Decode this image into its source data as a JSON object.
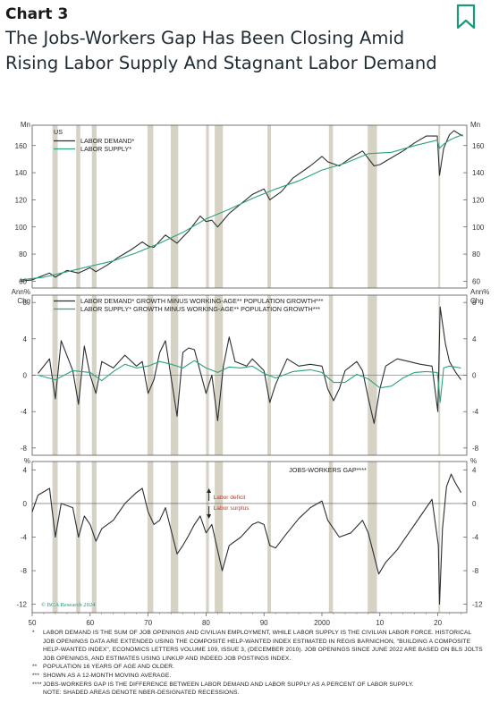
{
  "header": {
    "kicker": "Chart 3",
    "title": "The Jobs-Workers Gap Has Been Closing Amid Rising Labor Supply And Stagnant Labor Demand",
    "bookmark_icon": "bookmark-icon"
  },
  "colors": {
    "demand": "#2b2f33",
    "supply": "#2aa37e",
    "recession": "#d6d3c4",
    "accent": "#1a9a7a",
    "annotation": "#c0392b"
  },
  "chart_data": {
    "type": "line",
    "x_range": [
      1950,
      2025
    ],
    "x_ticks": [
      "50",
      "60",
      "70",
      "80",
      "90",
      "2000",
      "10",
      "20"
    ],
    "x_tick_values": [
      1950,
      1960,
      1970,
      1980,
      1990,
      2000,
      2010,
      2020
    ],
    "recessions": [
      [
        1953.5,
        1954.4
      ],
      [
        1957.6,
        1958.3
      ],
      [
        1960.3,
        1961.1
      ],
      [
        1969.9,
        1970.9
      ],
      [
        1973.9,
        1975.2
      ],
      [
        1980.0,
        1980.5
      ],
      [
        1981.5,
        1982.9
      ],
      [
        1990.6,
        1991.2
      ],
      [
        2001.2,
        2001.9
      ],
      [
        2007.9,
        2009.5
      ],
      [
        2020.1,
        2020.4
      ]
    ],
    "grid": false,
    "watermark": "© BCA Research 2024",
    "panels": [
      {
        "region": "US",
        "unit_left": "Mn",
        "unit_right": "Mn",
        "ylim": [
          55,
          175
        ],
        "y_ticks": [
          60,
          80,
          100,
          120,
          140,
          160
        ],
        "legend": "top-left",
        "series": [
          {
            "name": "LABOR DEMAND*",
            "color": "demand",
            "x": [
              1948,
              1950,
              1953,
              1954,
              1956,
              1958,
              1960,
              1961,
              1963,
              1965,
              1967,
              1969,
              1970,
              1971,
              1973,
              1975,
              1977,
              1979,
              1980,
              1981,
              1982,
              1984,
              1986,
              1988,
              1990,
              1991,
              1993,
              1995,
              1998,
              2000,
              2001,
              2003,
              2005,
              2007,
              2009,
              2010,
              2012,
              2014,
              2016,
              2018,
              2019.9,
              2020.3,
              2021,
              2022,
              2022.8,
              2023.5,
              2024.3
            ],
            "y": [
              60,
              61,
              66,
              63,
              68,
              66,
              70,
              67,
              72,
              78,
              83,
              89,
              86,
              85,
              94,
              88,
              97,
              108,
              104,
              105,
              100,
              110,
              117,
              124,
              128,
              120,
              126,
              136,
              145,
              152,
              148,
              145,
              151,
              156,
              145,
              146,
              151,
              156,
              162,
              167,
              167,
              138,
              158,
              168,
              171,
              169,
              167
            ]
          },
          {
            "name": "LABOR SUPPLY*",
            "color": "supply",
            "x": [
              1948,
              1952,
              1956,
              1960,
              1964,
              1968,
              1972,
              1976,
              1980,
              1984,
              1988,
              1992,
              1996,
              2000,
              2004,
              2008,
              2012,
              2016,
              2019.9,
              2020.3,
              2021,
              2022,
              2023,
              2024.3
            ],
            "y": [
              61,
              63,
              67,
              71,
              75,
              81,
              88,
              96,
              106,
              113,
              121,
              128,
              134,
              142,
              147,
              154,
              155,
              160,
              164,
              158,
              161,
              164,
              166,
              168
            ]
          }
        ]
      },
      {
        "unit_left": "Ann% Chg",
        "unit_right": "Ann% Chg",
        "ylim": [
          -8.8,
          8.8
        ],
        "y_ticks": [
          -8,
          -4,
          0,
          4,
          8
        ],
        "zero_line": true,
        "legend": "top-left",
        "series": [
          {
            "name": "LABOR DEMAND* GROWTH MINUS WORKING-AGE** POPULATION GROWTH***",
            "color": "demand",
            "x": [
              1951,
              1953,
              1954,
              1955,
              1957,
              1958,
              1959,
              1960,
              1961,
              1962,
              1964,
              1966,
              1968,
              1969,
              1970,
              1971,
              1972,
              1973,
              1975,
              1976,
              1977,
              1978,
              1980,
              1981,
              1982,
              1983,
              1984,
              1985,
              1987,
              1988,
              1990,
              1991,
              1992,
              1994,
              1996,
              1998,
              2000,
              2001,
              2002,
              2003,
              2004,
              2006,
              2007,
              2008,
              2009,
              2010,
              2011,
              2013,
              2015,
              2017,
              2019,
              2020,
              2020.4,
              2021.3,
              2022,
              2023,
              2024
            ],
            "y": [
              0.2,
              1.8,
              -2.6,
              3.8,
              0.5,
              -3.2,
              3.2,
              0,
              -2,
              1.5,
              0.8,
              2.2,
              1,
              1.5,
              -2,
              -0.5,
              2.5,
              3.8,
              -4.5,
              2.5,
              3,
              2.8,
              -2,
              0,
              -5,
              1,
              4.2,
              1.5,
              1,
              1.8,
              0.5,
              -3,
              -1,
              1.8,
              1,
              1.2,
              1,
              -1.5,
              -2.8,
              -1.5,
              0.5,
              1.5,
              0.5,
              -2.5,
              -5.3,
              -1.5,
              1,
              1.8,
              1.5,
              1.2,
              1,
              -4,
              7.5,
              3.5,
              1.5,
              0.4,
              -0.5
            ]
          },
          {
            "name": "LABOR SUPPLY* GROWTH MINUS WORKING-AGE** POPULATION GROWTH***",
            "color": "supply",
            "x": [
              1951,
              1954,
              1957,
              1960,
              1962,
              1964,
              1966,
              1968,
              1970,
              1972,
              1974,
              1976,
              1978,
              1980,
              1982,
              1984,
              1986,
              1988,
              1990,
              1992,
              1995,
              1998,
              2000,
              2002,
              2004,
              2006,
              2008,
              2010,
              2012,
              2014,
              2016,
              2018,
              2019.9,
              2020.4,
              2021,
              2022,
              2024
            ],
            "y": [
              0,
              -0.5,
              0.5,
              0.3,
              -0.6,
              0.4,
              1.2,
              0.8,
              1,
              1.5,
              1.2,
              0.8,
              1.6,
              0.8,
              0.3,
              0.9,
              0.8,
              1,
              0.2,
              -0.3,
              0.4,
              0.6,
              0.3,
              -0.8,
              -0.8,
              0.1,
              -0.4,
              -1.4,
              -1.2,
              -0.3,
              0.3,
              0.4,
              0.3,
              -3,
              0.8,
              1,
              0.8
            ]
          }
        ]
      },
      {
        "title": "JOBS-WORKERS GAP****",
        "unit_left": "%",
        "unit_right": "%",
        "ylim": [
          -13,
          5
        ],
        "y_ticks": [
          -12,
          -8,
          -4,
          0,
          4
        ],
        "zero_line": true,
        "annotations": {
          "up": "Labor deficit",
          "down": "Labor surplus"
        },
        "series": [
          {
            "name": "JOBS-WORKERS GAP****",
            "color": "demand",
            "x": [
              1950,
              1951,
              1953,
              1954,
              1955,
              1957,
              1958,
              1959,
              1960,
              1961,
              1962,
              1964,
              1966,
              1968,
              1969,
              1970,
              1971,
              1972,
              1973,
              1975,
              1976,
              1977,
              1978,
              1979,
              1980,
              1981,
              1982.8,
              1984,
              1986,
              1988,
              1989,
              1990,
              1991,
              1992,
              1994,
              1996,
              1998,
              2000,
              2001,
              2003,
              2005,
              2007,
              2008,
              2009.8,
              2011,
              2013,
              2015,
              2017,
              2019,
              2020.1,
              2020.3,
              2020.8,
              2021.5,
              2022.3,
              2023,
              2024
            ],
            "y": [
              -1,
              1,
              1.8,
              -4,
              0,
              -0.5,
              -4,
              -1.5,
              -2.5,
              -4.5,
              -3,
              -2,
              0,
              1.3,
              1.8,
              -1,
              -2.5,
              -2,
              -0.5,
              -6,
              -5,
              -3.8,
              -2.5,
              -1.5,
              -3.5,
              -2.5,
              -8,
              -5,
              -4,
              -2.5,
              -2.2,
              -2.5,
              -5,
              -5.3,
              -3.5,
              -1.8,
              -0.5,
              0.3,
              -2,
              -4,
              -3.5,
              -2,
              -3.5,
              -8.4,
              -7,
              -5.5,
              -3.5,
              -1.5,
              0.5,
              -5,
              -12,
              -3,
              2,
              3.5,
              2.5,
              1.3
            ]
          }
        ]
      }
    ]
  },
  "notes": [
    {
      "mark": "*",
      "text": "LABOR DEMAND IS THE SUM OF JOB OPENINGS AND CIVILIAN EMPLOYMENT, WHILE LABOR SUPPLY IS THE CIVILIAN LABOR FORCE. HISTORICAL JOB OPENINGS DATA ARE EXTENDED USING THE COMPOSITE HELP-WANTED INDEX ESTIMATED IN REGIS BARNICHON, \"BUILDING A COMPOSITE HELP-WANTED INDEX\", ECONOMICS LETTERS VOLUME 109, ISSUE 3, (DECEMBER 2010). JOB OPENINGS SINCE JUNE 2022 ARE BASED ON BLS JOLTS JOB OPENINGS, AND ESTIMATES USING LINKUP AND INDEED JOB POSTINGS INDEX."
    },
    {
      "mark": "**",
      "text": "POPULATION 16 YEARS OF AGE AND OLDER."
    },
    {
      "mark": "***",
      "text": "SHOWN AS A 12-MONTH MOVING AVERAGE."
    },
    {
      "mark": "****",
      "text": "JOBS-WORKERS GAP IS THE DIFFERENCE BETWEEN LABOR DEMAND AND LABOR SUPPLY AS A PERCENT OF LABOR SUPPLY."
    },
    {
      "mark": "",
      "text": "NOTE: SHADED AREAS DENOTE NBER-DESIGNATED RECESSIONS."
    }
  ]
}
